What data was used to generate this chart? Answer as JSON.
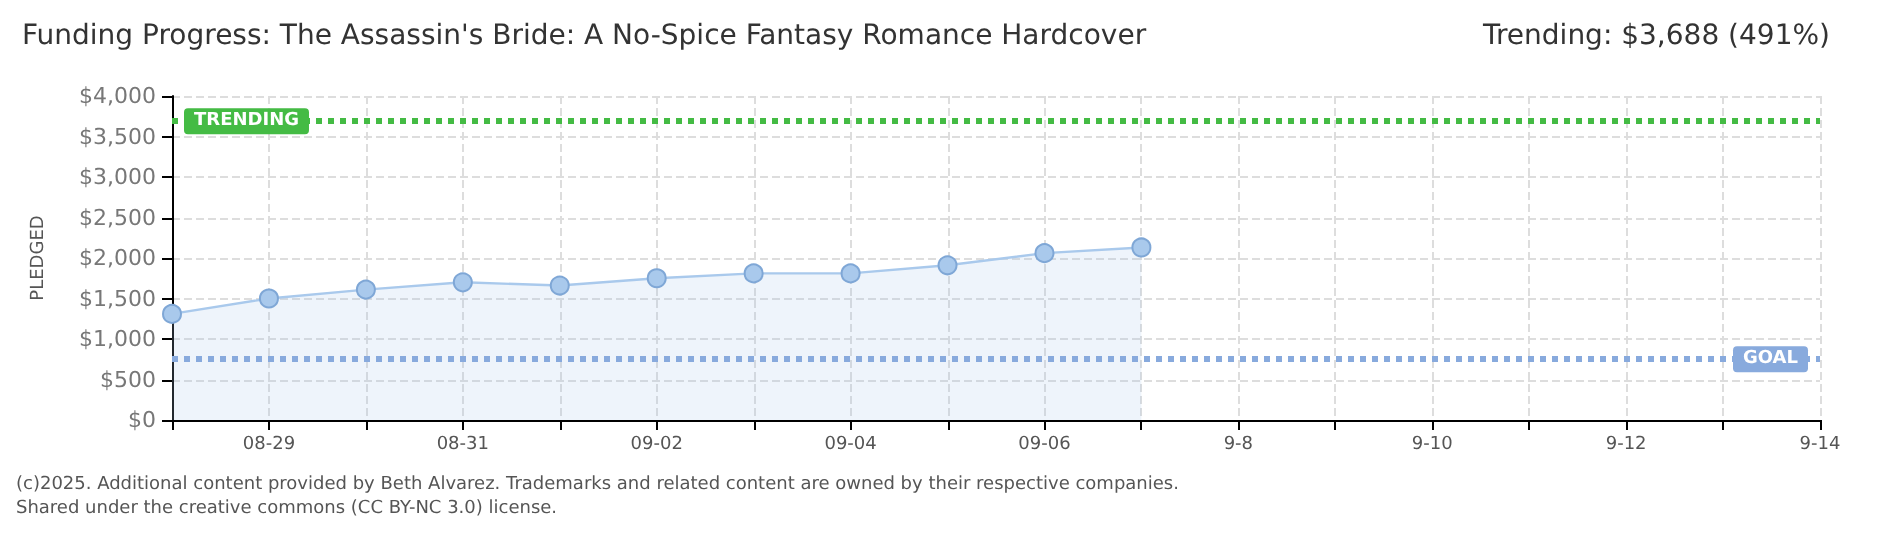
{
  "chart_data": {
    "type": "area",
    "title": "Funding Progress: The Assassin's Bride: A No-Spice Fantasy Romance Hardcover",
    "subtitle": "Trending: $3,688 (491%)",
    "ylabel": "PLEDGED",
    "categories": [
      null,
      "08-29",
      null,
      "08-31",
      null,
      "09-02",
      null,
      "09-04",
      null,
      "09-06",
      null,
      "9-8",
      null,
      "9-10",
      null,
      "9-12",
      null,
      "9-14"
    ],
    "series": [
      {
        "color": "#a9c9ec",
        "values": [
          1310,
          1500,
          1610,
          1700,
          1660,
          1750,
          1810,
          1810,
          1910,
          2060,
          2130,
          null,
          null,
          null,
          null,
          null,
          null,
          null
        ]
      }
    ],
    "ylim": [
      0,
      4000
    ],
    "yticks": [
      {
        "value": 0,
        "label": "$0"
      },
      {
        "value": 500,
        "label": "$500"
      },
      {
        "value": 1000,
        "label": "$1,000"
      },
      {
        "value": 1500,
        "label": "$1,500"
      },
      {
        "value": 2000,
        "label": "$2,000"
      },
      {
        "value": 2500,
        "label": "$2,500"
      },
      {
        "value": 3000,
        "label": "$3,000"
      },
      {
        "value": 3500,
        "label": "$3,500"
      },
      {
        "value": 4000,
        "label": "$4,000"
      }
    ],
    "ref_lines": [
      {
        "axis": "y",
        "value": 3688,
        "label": "TRENDING",
        "color": "#44bb44",
        "line_style": "dotted"
      },
      {
        "axis": "y",
        "value": 750,
        "label": "GOAL",
        "color": "#88aadd",
        "line_style": "dotted"
      }
    ],
    "annotations": [
      "(c)2025. Additional content provided by Beth Alvarez. Trademarks and related content are owned by their respective companies.",
      "Shared under the creative commons (CC BY-NC 3.0) license."
    ],
    "grid": true,
    "marker": "circle",
    "line_style": "solid"
  }
}
